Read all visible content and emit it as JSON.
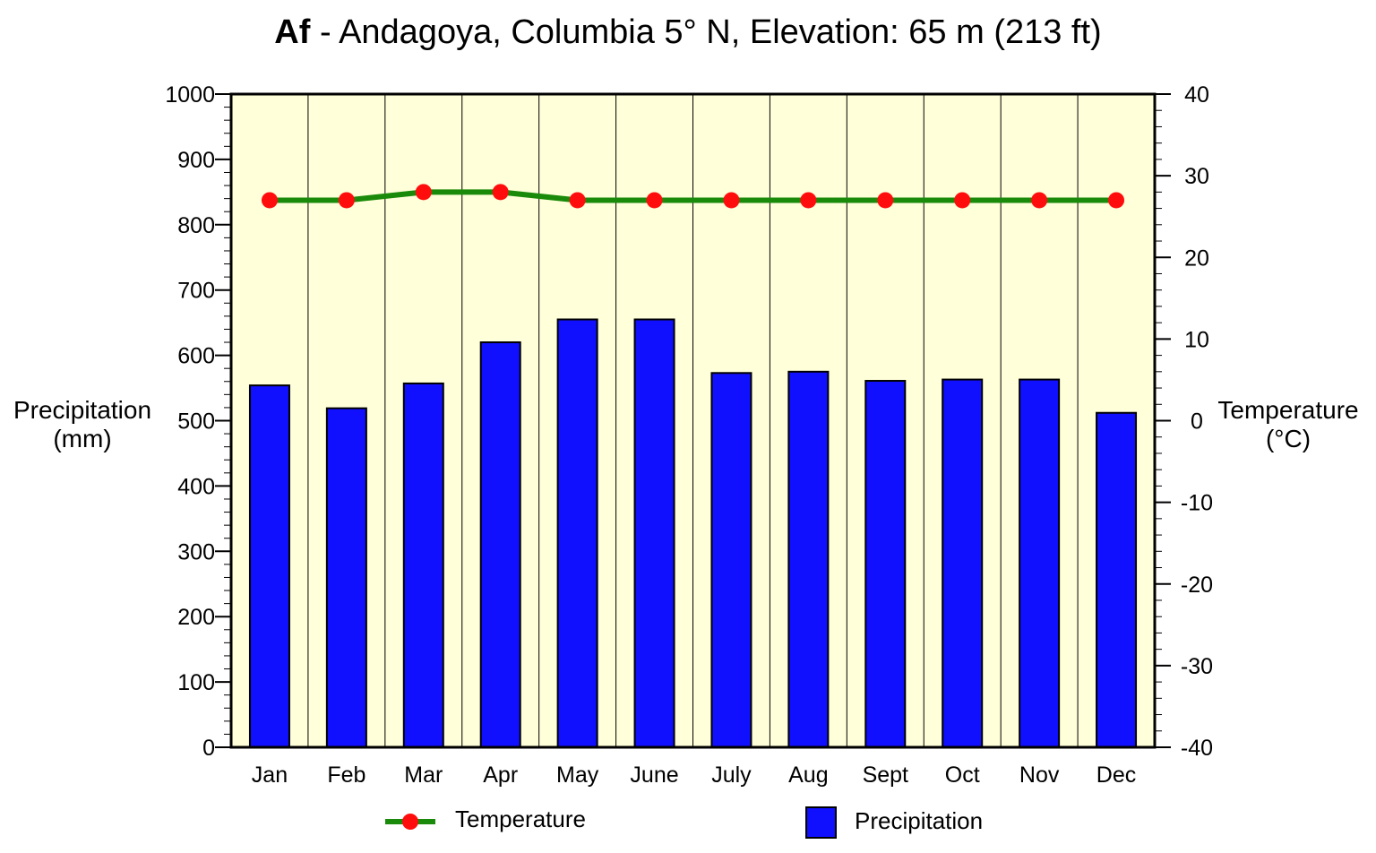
{
  "chart_data": {
    "type": "bar",
    "title_bold": "Af",
    "title_rest": " - Andagoya, Columbia 5° N, Elevation: 65 m (213 ft)",
    "categories": [
      "Jan",
      "Feb",
      "Mar",
      "Apr",
      "May",
      "June",
      "July",
      "Aug",
      "Sept",
      "Oct",
      "Nov",
      "Dec"
    ],
    "series": [
      {
        "name": "Precipitation",
        "type": "bar",
        "axis": "left",
        "color": "#1010ff",
        "values": [
          554,
          519,
          557,
          620,
          655,
          655,
          573,
          575,
          561,
          563,
          563,
          512
        ]
      },
      {
        "name": "Temperature",
        "type": "line",
        "axis": "right",
        "color": "#1a8a0a",
        "marker_color": "#ff0d0d",
        "values": [
          27,
          27,
          28,
          28,
          27,
          27,
          27,
          27,
          27,
          27,
          27,
          27
        ]
      }
    ],
    "ylabel_left_line1": "Precipitation",
    "ylabel_left_line2": "(mm)",
    "ylabel_right_line1": "Temperature",
    "ylabel_right_line2": "(°C)",
    "ylim_left": [
      0,
      1000
    ],
    "yticks_left": [
      0,
      100,
      200,
      300,
      400,
      500,
      600,
      700,
      800,
      900,
      1000
    ],
    "ylim_right": [
      -40,
      40
    ],
    "yticks_right": [
      -40,
      -30,
      -20,
      -10,
      0,
      10,
      20,
      30,
      40
    ],
    "plot_background": "#ffffd9",
    "legend": [
      {
        "label": "Temperature",
        "kind": "line"
      },
      {
        "label": "Precipitation",
        "kind": "bar"
      }
    ]
  }
}
